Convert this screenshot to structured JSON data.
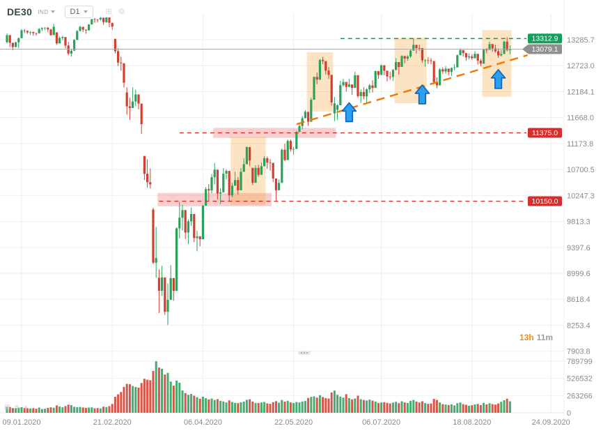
{
  "header": {
    "symbol": "DE30",
    "instrument_type": "IND",
    "timeframe": "D1"
  },
  "countdown": {
    "hours": "13h",
    "minutes": "11m"
  },
  "chart_data": {
    "type": "candlestick",
    "symbol": "DE30",
    "timeframe": "D1",
    "current_price": 13079.1,
    "y_ticks": [
      "13285.7",
      "12723.0",
      "12184.1",
      "11668.0",
      "11173.8",
      "10700.5",
      "10247.3",
      "9813.3",
      "9397.6",
      "8999.6",
      "8618.4",
      "8253.4",
      "7903.8"
    ],
    "volume_ticks": [
      "789799",
      "526532",
      "263266",
      "0"
    ],
    "x_ticks": [
      {
        "label": "09.01.2020",
        "index": 5
      },
      {
        "label": "21.02.2020",
        "index": 36
      },
      {
        "label": "06.04.2020",
        "index": 67
      },
      {
        "label": "22.05.2020",
        "index": 98
      },
      {
        "label": "06.07.2020",
        "index": 128
      },
      {
        "label": "18.08.2020",
        "index": 159
      },
      {
        "label": "24.09.2020",
        "index": 186
      }
    ],
    "levels": [
      {
        "label": "13312.9",
        "price": 13312.9,
        "from_index": 114,
        "color": "#12a05c"
      },
      {
        "label": "11375.0",
        "price": 11375.0,
        "from_index": 59,
        "color": "#d32f2f"
      },
      {
        "label": "10150.0",
        "price": 10150.0,
        "from_index": 52,
        "color": "#d32f2f"
      }
    ],
    "price_marker": {
      "label": "13079.1",
      "price": 13079.1,
      "color": "#8f8f8f"
    },
    "zones": [
      {
        "from_index": 77,
        "to_index": 88,
        "price_top": 11300,
        "price_bottom": 10085
      },
      {
        "from_index": 103,
        "to_index": 111,
        "price_top": 13010,
        "price_bottom": 11790
      },
      {
        "from_index": 133,
        "to_index": 143,
        "price_top": 13330,
        "price_bottom": 11950
      },
      {
        "from_index": 163,
        "to_index": 172,
        "price_top": 13500,
        "price_bottom": 12080
      }
    ],
    "bands": [
      {
        "from_index": 52,
        "to_index": 90,
        "price_top": 10290,
        "price_bottom": 10065
      },
      {
        "from_index": 71,
        "to_index": 112,
        "price_top": 11470,
        "price_bottom": 11280
      }
    ],
    "trendline": {
      "from_index": 99,
      "from_price": 11540,
      "to_index": 178,
      "to_price": 12950
    },
    "arrows": [
      {
        "index": 117,
        "price": 11960
      },
      {
        "index": 142,
        "price": 12320
      },
      {
        "index": 168,
        "price": 12640
      }
    ],
    "colors": {
      "up": "#2aa25c",
      "down": "#d23f31",
      "zone": "#f5a93d",
      "zone_opacity": 0.32,
      "band": "#f07f7f",
      "band_opacity": 0.38,
      "trendline": "#f07800",
      "arrow": "#2b9ff0",
      "grid": "#eeeeee",
      "axis_text": "#8a8a8a"
    },
    "candles": [
      [
        13233,
        13426,
        13205,
        13386
      ],
      [
        13386,
        13396,
        13126,
        13219
      ],
      [
        13219,
        13220,
        13052,
        13126
      ],
      [
        13126,
        13245,
        13116,
        13227
      ],
      [
        13227,
        13341,
        13104,
        13320
      ],
      [
        13320,
        13522,
        13320,
        13495
      ],
      [
        13495,
        13528,
        13434,
        13483
      ],
      [
        13483,
        13495,
        13414,
        13451
      ],
      [
        13451,
        13479,
        13393,
        13456
      ],
      [
        13456,
        13466,
        13374,
        13432
      ],
      [
        13432,
        13443,
        13376,
        13429
      ],
      [
        13429,
        13546,
        13429,
        13526
      ],
      [
        13526,
        13564,
        13482,
        13548
      ],
      [
        13548,
        13563,
        13500,
        13555
      ],
      [
        13555,
        13572,
        13453,
        13515
      ],
      [
        13515,
        13531,
        13376,
        13388
      ],
      [
        13388,
        13640,
        13388,
        13577
      ],
      [
        13450,
        13456,
        13169,
        13205
      ],
      [
        13205,
        13357,
        13205,
        13324
      ],
      [
        13324,
        13374,
        13276,
        13345
      ],
      [
        13345,
        13345,
        13096,
        13157
      ],
      [
        13157,
        13235,
        12948,
        12982
      ],
      [
        12982,
        13084,
        12918,
        13045
      ],
      [
        13045,
        13298,
        13045,
        13281
      ],
      [
        13281,
        13501,
        13281,
        13478
      ],
      [
        13478,
        13598,
        13478,
        13574
      ],
      [
        13574,
        13574,
        13455,
        13513
      ],
      [
        13513,
        13514,
        13415,
        13494
      ],
      [
        13494,
        13637,
        13494,
        13627
      ],
      [
        13627,
        13752,
        13627,
        13750
      ],
      [
        13750,
        13777,
        13665,
        13745
      ],
      [
        13745,
        13749,
        13677,
        13744
      ],
      [
        13744,
        13795,
        13718,
        13783
      ],
      [
        13783,
        13783,
        13623,
        13681
      ],
      [
        13681,
        13794,
        13664,
        13789
      ],
      [
        13789,
        13789,
        13565,
        13664
      ],
      [
        13664,
        13665,
        13512,
        13579
      ],
      [
        13306,
        13306,
        12983,
        13035
      ],
      [
        13035,
        13104,
        12711,
        12790
      ],
      [
        12790,
        12918,
        12618,
        12775
      ],
      [
        12775,
        12775,
        12268,
        12367
      ],
      [
        12168,
        12274,
        11725,
        11890
      ],
      [
        11890,
        12061,
        11624,
        11857
      ],
      [
        11857,
        12271,
        11857,
        11985
      ],
      [
        11985,
        12225,
        11890,
        12128
      ],
      [
        12128,
        12128,
        11830,
        11944
      ],
      [
        11944,
        11944,
        11354,
        11542
      ],
      [
        10945,
        10945,
        10514,
        10625
      ],
      [
        10625,
        10886,
        10380,
        10475
      ],
      [
        10475,
        10720,
        10366,
        10439
      ],
      [
        10010,
        10041,
        9139,
        9161
      ],
      [
        9161,
        9724,
        8933,
        9232
      ],
      [
        8934,
        9060,
        8423,
        8742
      ],
      [
        8742,
        9115,
        8667,
        8939
      ],
      [
        8939,
        8939,
        8397,
        8441
      ],
      [
        8441,
        8849,
        8255,
        8610
      ],
      [
        8610,
        9121,
        8610,
        8929
      ],
      [
        8929,
        8929,
        8600,
        8741
      ],
      [
        8741,
        9715,
        8741,
        9700
      ],
      [
        9700,
        10137,
        9540,
        9874
      ],
      [
        9874,
        10090,
        9664,
        10001
      ],
      [
        10001,
        10001,
        9528,
        9633
      ],
      [
        9633,
        9846,
        9451,
        9816
      ],
      [
        9816,
        10046,
        9740,
        9936
      ],
      [
        9936,
        9936,
        9481,
        9545
      ],
      [
        9545,
        9662,
        9337,
        9571
      ],
      [
        9571,
        9577,
        9413,
        9526
      ],
      [
        9526,
        10089,
        9526,
        10075
      ],
      [
        10075,
        10392,
        10075,
        10357
      ],
      [
        10357,
        10444,
        10161,
        10333
      ],
      [
        10333,
        10621,
        10287,
        10565
      ],
      [
        10565,
        10815,
        10437,
        10697
      ],
      [
        10697,
        10697,
        10180,
        10280
      ],
      [
        10280,
        10370,
        10104,
        10301
      ],
      [
        10301,
        10724,
        10301,
        10626
      ],
      [
        10626,
        10705,
        10525,
        10676
      ],
      [
        10676,
        10676,
        10152,
        10250
      ],
      [
        10250,
        10467,
        10216,
        10416
      ],
      [
        10416,
        10659,
        10416,
        10514
      ],
      [
        10514,
        10569,
        10262,
        10336
      ],
      [
        10336,
        10728,
        10336,
        10660
      ],
      [
        10660,
        10905,
        10660,
        10796
      ],
      [
        10796,
        11120,
        10796,
        11108
      ],
      [
        11108,
        11110,
        10762,
        10862
      ],
      [
        10730,
        10730,
        10427,
        10466
      ],
      [
        10466,
        10778,
        10466,
        10730
      ],
      [
        10730,
        10784,
        10572,
        10607
      ],
      [
        10607,
        10827,
        10607,
        10759
      ],
      [
        10759,
        10944,
        10759,
        10904
      ],
      [
        10904,
        10937,
        10713,
        10824
      ],
      [
        10824,
        10889,
        10682,
        10820
      ],
      [
        10820,
        10820,
        10480,
        10542
      ],
      [
        10542,
        10542,
        10163,
        10337
      ],
      [
        10337,
        10524,
        10337,
        10465
      ],
      [
        10465,
        11082,
        10465,
        11059
      ],
      [
        11059,
        11173,
        10851,
        10871
      ],
      [
        10871,
        11252,
        10871,
        11223
      ],
      [
        11223,
        11248,
        11030,
        11066
      ],
      [
        11066,
        11106,
        10971,
        11074
      ],
      [
        11074,
        11415,
        11074,
        11391
      ],
      [
        11391,
        11552,
        11391,
        11505
      ],
      [
        11505,
        11700,
        11445,
        11657
      ],
      [
        11657,
        11815,
        11657,
        11781
      ],
      [
        11781,
        11781,
        11507,
        11587
      ],
      [
        11587,
        12062,
        11587,
        12021
      ],
      [
        12021,
        12496,
        12021,
        12487
      ],
      [
        12487,
        12580,
        12336,
        12430
      ],
      [
        12430,
        12864,
        12430,
        12847
      ],
      [
        12847,
        12913,
        12755,
        12820
      ],
      [
        12820,
        12820,
        12536,
        12618
      ],
      [
        12618,
        12692,
        12447,
        12530
      ],
      [
        12530,
        12530,
        11904,
        11970
      ],
      [
        11750,
        12077,
        11597,
        11949
      ],
      [
        11820,
        11932,
        11627,
        11911
      ],
      [
        11911,
        12406,
        11911,
        12316
      ],
      [
        12316,
        12450,
        12289,
        12382
      ],
      [
        12382,
        12382,
        12186,
        12281
      ],
      [
        12281,
        12449,
        12281,
        12331
      ],
      [
        12331,
        12331,
        12116,
        12262
      ],
      [
        12262,
        12595,
        12262,
        12523
      ],
      [
        12523,
        12523,
        12058,
        12094
      ],
      [
        12094,
        12227,
        11958,
        12177
      ],
      [
        12177,
        12276,
        12032,
        12089
      ],
      [
        12089,
        12252,
        11955,
        12232
      ],
      [
        12232,
        12341,
        12155,
        12311
      ],
      [
        12311,
        12418,
        12165,
        12261
      ],
      [
        12261,
        12620,
        12261,
        12608
      ],
      [
        12608,
        12608,
        12448,
        12528
      ],
      [
        12528,
        12746,
        12528,
        12733
      ],
      [
        12733,
        12733,
        12521,
        12617
      ],
      [
        12617,
        12617,
        12394,
        12495
      ],
      [
        12495,
        12597,
        12430,
        12489
      ],
      [
        12489,
        12652,
        12405,
        12633
      ],
      [
        12633,
        12884,
        12633,
        12800
      ],
      [
        12800,
        12800,
        12536,
        12697
      ],
      [
        12697,
        12942,
        12697,
        12930
      ],
      [
        12930,
        12930,
        12773,
        12874
      ],
      [
        12874,
        12949,
        12830,
        12920
      ],
      [
        12920,
        13068,
        12890,
        13047
      ],
      [
        13047,
        13314,
        13047,
        13172
      ],
      [
        13172,
        13172,
        12984,
        13104
      ],
      [
        13104,
        13176,
        13041,
        13103
      ],
      [
        13103,
        13103,
        12790,
        12838
      ],
      [
        12838,
        12863,
        12705,
        12839
      ],
      [
        12839,
        12902,
        12758,
        12835
      ],
      [
        12835,
        12888,
        12752,
        12822
      ],
      [
        12822,
        12822,
        12336,
        12380
      ],
      [
        12380,
        12478,
        12253,
        12313
      ],
      [
        12313,
        12669,
        12313,
        12647
      ],
      [
        12647,
        12689,
        12553,
        12601
      ],
      [
        12601,
        12713,
        12556,
        12660
      ],
      [
        12660,
        12660,
        12521,
        12591
      ],
      [
        12591,
        12687,
        12507,
        12675
      ],
      [
        12675,
        12759,
        12620,
        12687
      ],
      [
        12687,
        12965,
        12687,
        12946
      ],
      [
        12946,
        13094,
        12946,
        13059
      ],
      [
        13059,
        13059,
        12919,
        12993
      ],
      [
        12993,
        12993,
        12826,
        12901
      ],
      [
        12901,
        12989,
        12859,
        12921
      ],
      [
        12921,
        12968,
        12847,
        12882
      ],
      [
        12882,
        13035,
        12882,
        12977
      ],
      [
        12977,
        12977,
        12746,
        12830
      ],
      [
        12830,
        12870,
        12713,
        12765
      ],
      [
        12765,
        13083,
        12765,
        13067
      ],
      [
        13067,
        13104,
        12987,
        13061
      ],
      [
        13061,
        13245,
        13061,
        13190
      ],
      [
        13190,
        13190,
        13020,
        13096
      ],
      [
        13096,
        13177,
        13001,
        13033
      ],
      [
        13033,
        13096,
        12893,
        12945
      ],
      [
        12945,
        13060,
        12919,
        12974
      ],
      [
        12974,
        13263,
        12974,
        13243
      ],
      [
        13243,
        13339,
        13029,
        13057
      ],
      [
        13057,
        13161,
        12970,
        13079
      ]
    ],
    "volumes_thousands": [
      95,
      88,
      72,
      70,
      78,
      85,
      74,
      69,
      66,
      71,
      63,
      80,
      58,
      62,
      75,
      83,
      77,
      112,
      96,
      84,
      103,
      125,
      118,
      92,
      86,
      89,
      81,
      74,
      79,
      83,
      68,
      72,
      66,
      94,
      88,
      102,
      135,
      245,
      282,
      318,
      396,
      442,
      438,
      410,
      395,
      385,
      456,
      520,
      505,
      498,
      640,
      788,
      692,
      673,
      586,
      611,
      478,
      415,
      492,
      460,
      342,
      300,
      276,
      288,
      262,
      238,
      215,
      246,
      224,
      205,
      218,
      196,
      208,
      182,
      174,
      158,
      190,
      165,
      152,
      148,
      160,
      172,
      198,
      207,
      172,
      151,
      148,
      158,
      166,
      143,
      137,
      162,
      178,
      153,
      196,
      171,
      182,
      158,
      149,
      164,
      158,
      172,
      181,
      227,
      243,
      251,
      232,
      268,
      241,
      225,
      218,
      312,
      340,
      276,
      248,
      232,
      285,
      224,
      206,
      218,
      262,
      208,
      196,
      188,
      202,
      186,
      172,
      148,
      158,
      162,
      151,
      143,
      156,
      168,
      147,
      176,
      158,
      150,
      182,
      196,
      172,
      158,
      176,
      148,
      136,
      142,
      212,
      196,
      158,
      132,
      126,
      118,
      128,
      112,
      146,
      158,
      132,
      122,
      108,
      116,
      128,
      136,
      118,
      152,
      128,
      146,
      132,
      126,
      142,
      168,
      192,
      215,
      176
    ]
  }
}
